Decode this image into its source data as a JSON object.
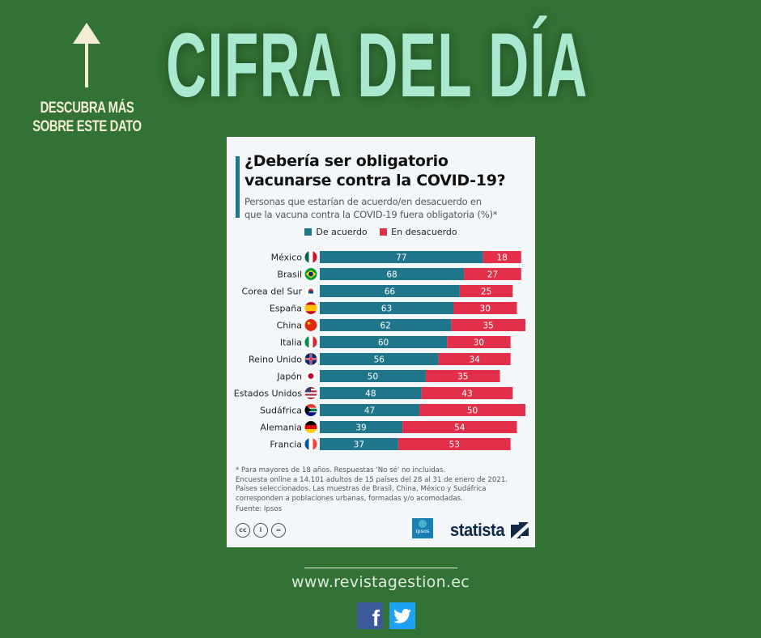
{
  "header": {
    "cta_line1": "DESCUBRA MÁS",
    "cta_line2": "SOBRE ESTE DATO",
    "headline": "CIFRA DEL DÍA",
    "arrow_icon": "arrow-up-icon"
  },
  "card": {
    "title_line1": "¿Debería ser obligatorio",
    "title_line2": "vacunarse contra la COVID-19?",
    "subtitle_line1": "Personas que estarían de acuerdo/en desacuerdo en",
    "subtitle_line2": "que la vacuna contra la COVID-19 fuera obligatoria (%)*",
    "notes": [
      "* Para mayores de 18 años. Respuestas 'No sé' no incluidas.",
      "Encuesta online a 14.101 adultos de 15 países del 28 al 31 de enero de 2021.",
      "Países seleccionados. Las muestras de Brasil, China, México y Sudáfrica",
      "corresponden a poblaciones urbanas, formadas y/o acomodadas."
    ],
    "source": "Fuente: Ipsos",
    "license_icons": [
      "cc-icon",
      "attribution-icon",
      "no-derivatives-icon"
    ],
    "ipsos_logo": "Ipsos",
    "statista_logo": "statista"
  },
  "footer": {
    "website": "www.revistagestion.ec",
    "social": [
      "facebook-icon",
      "twitter-icon"
    ]
  },
  "colors": {
    "background": "#327234",
    "headline": "#a9e9cf",
    "agree": "#1f7589",
    "disagree": "#e3304a"
  },
  "chart_data": {
    "type": "bar",
    "orientation": "horizontal",
    "stacked": true,
    "title": "¿Debería ser obligatorio vacunarse contra la COVID-19?",
    "subtitle": "Personas que estarían de acuerdo/en desacuerdo en que la vacuna contra la COVID-19 fuera obligatoria (%)*",
    "legend": [
      "De acuerdo",
      "En desacuerdo"
    ],
    "legend_position": "top-center",
    "categories": [
      "México",
      "Brasil",
      "Corea del Sur",
      "España",
      "China",
      "Italia",
      "Reino Unido",
      "Japón",
      "Estados Unidos",
      "Sudáfrica",
      "Alemania",
      "Francia"
    ],
    "flags": [
      "mx",
      "br",
      "kr",
      "es",
      "cn",
      "it",
      "gb",
      "jp",
      "us",
      "za",
      "de",
      "fr"
    ],
    "series": [
      {
        "name": "De acuerdo",
        "color": "#1f7589",
        "values": [
          77,
          68,
          66,
          63,
          62,
          60,
          56,
          50,
          48,
          47,
          39,
          37
        ]
      },
      {
        "name": "En desacuerdo",
        "color": "#e3304a",
        "values": [
          18,
          27,
          25,
          30,
          35,
          30,
          34,
          35,
          43,
          50,
          54,
          53
        ]
      }
    ],
    "xlim": [
      0,
      97
    ],
    "grid": false,
    "xlabel": "",
    "ylabel": ""
  }
}
